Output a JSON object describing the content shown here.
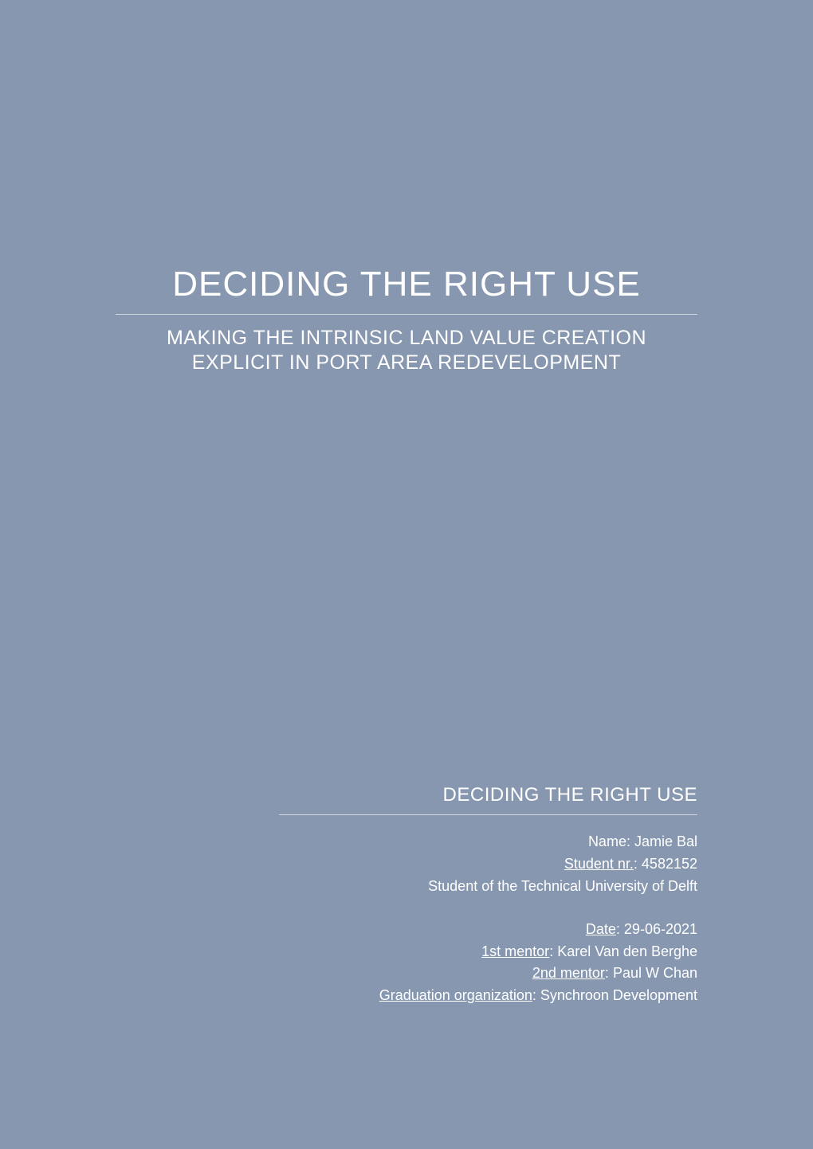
{
  "title": {
    "main": "DECIDING THE RIGHT USE",
    "subtitle": "MAKING THE INTRINSIC LAND VALUE CREATION EXPLICIT IN PORT AREA REDEVELOPMENT"
  },
  "info": {
    "heading": "DECIDING THE RIGHT USE",
    "student": {
      "name_label": "Name",
      "name_value": "Jamie Bal",
      "number_label": "Student nr.",
      "number_value": "4582152",
      "affiliation": "Student of the Technical University of Delft"
    },
    "details": {
      "date_label": "Date",
      "date_value": "29-06-2021",
      "mentor1_label": "1st mentor",
      "mentor1_value": "Karel Van den Berghe",
      "mentor2_label": "2nd mentor",
      "mentor2_value": "Paul W Chan",
      "org_label": "Graduation organization",
      "org_value": "Synchroon Development"
    }
  },
  "colors": {
    "background": "#8697af",
    "text": "#ffffff",
    "divider": "#d0d6e0"
  }
}
